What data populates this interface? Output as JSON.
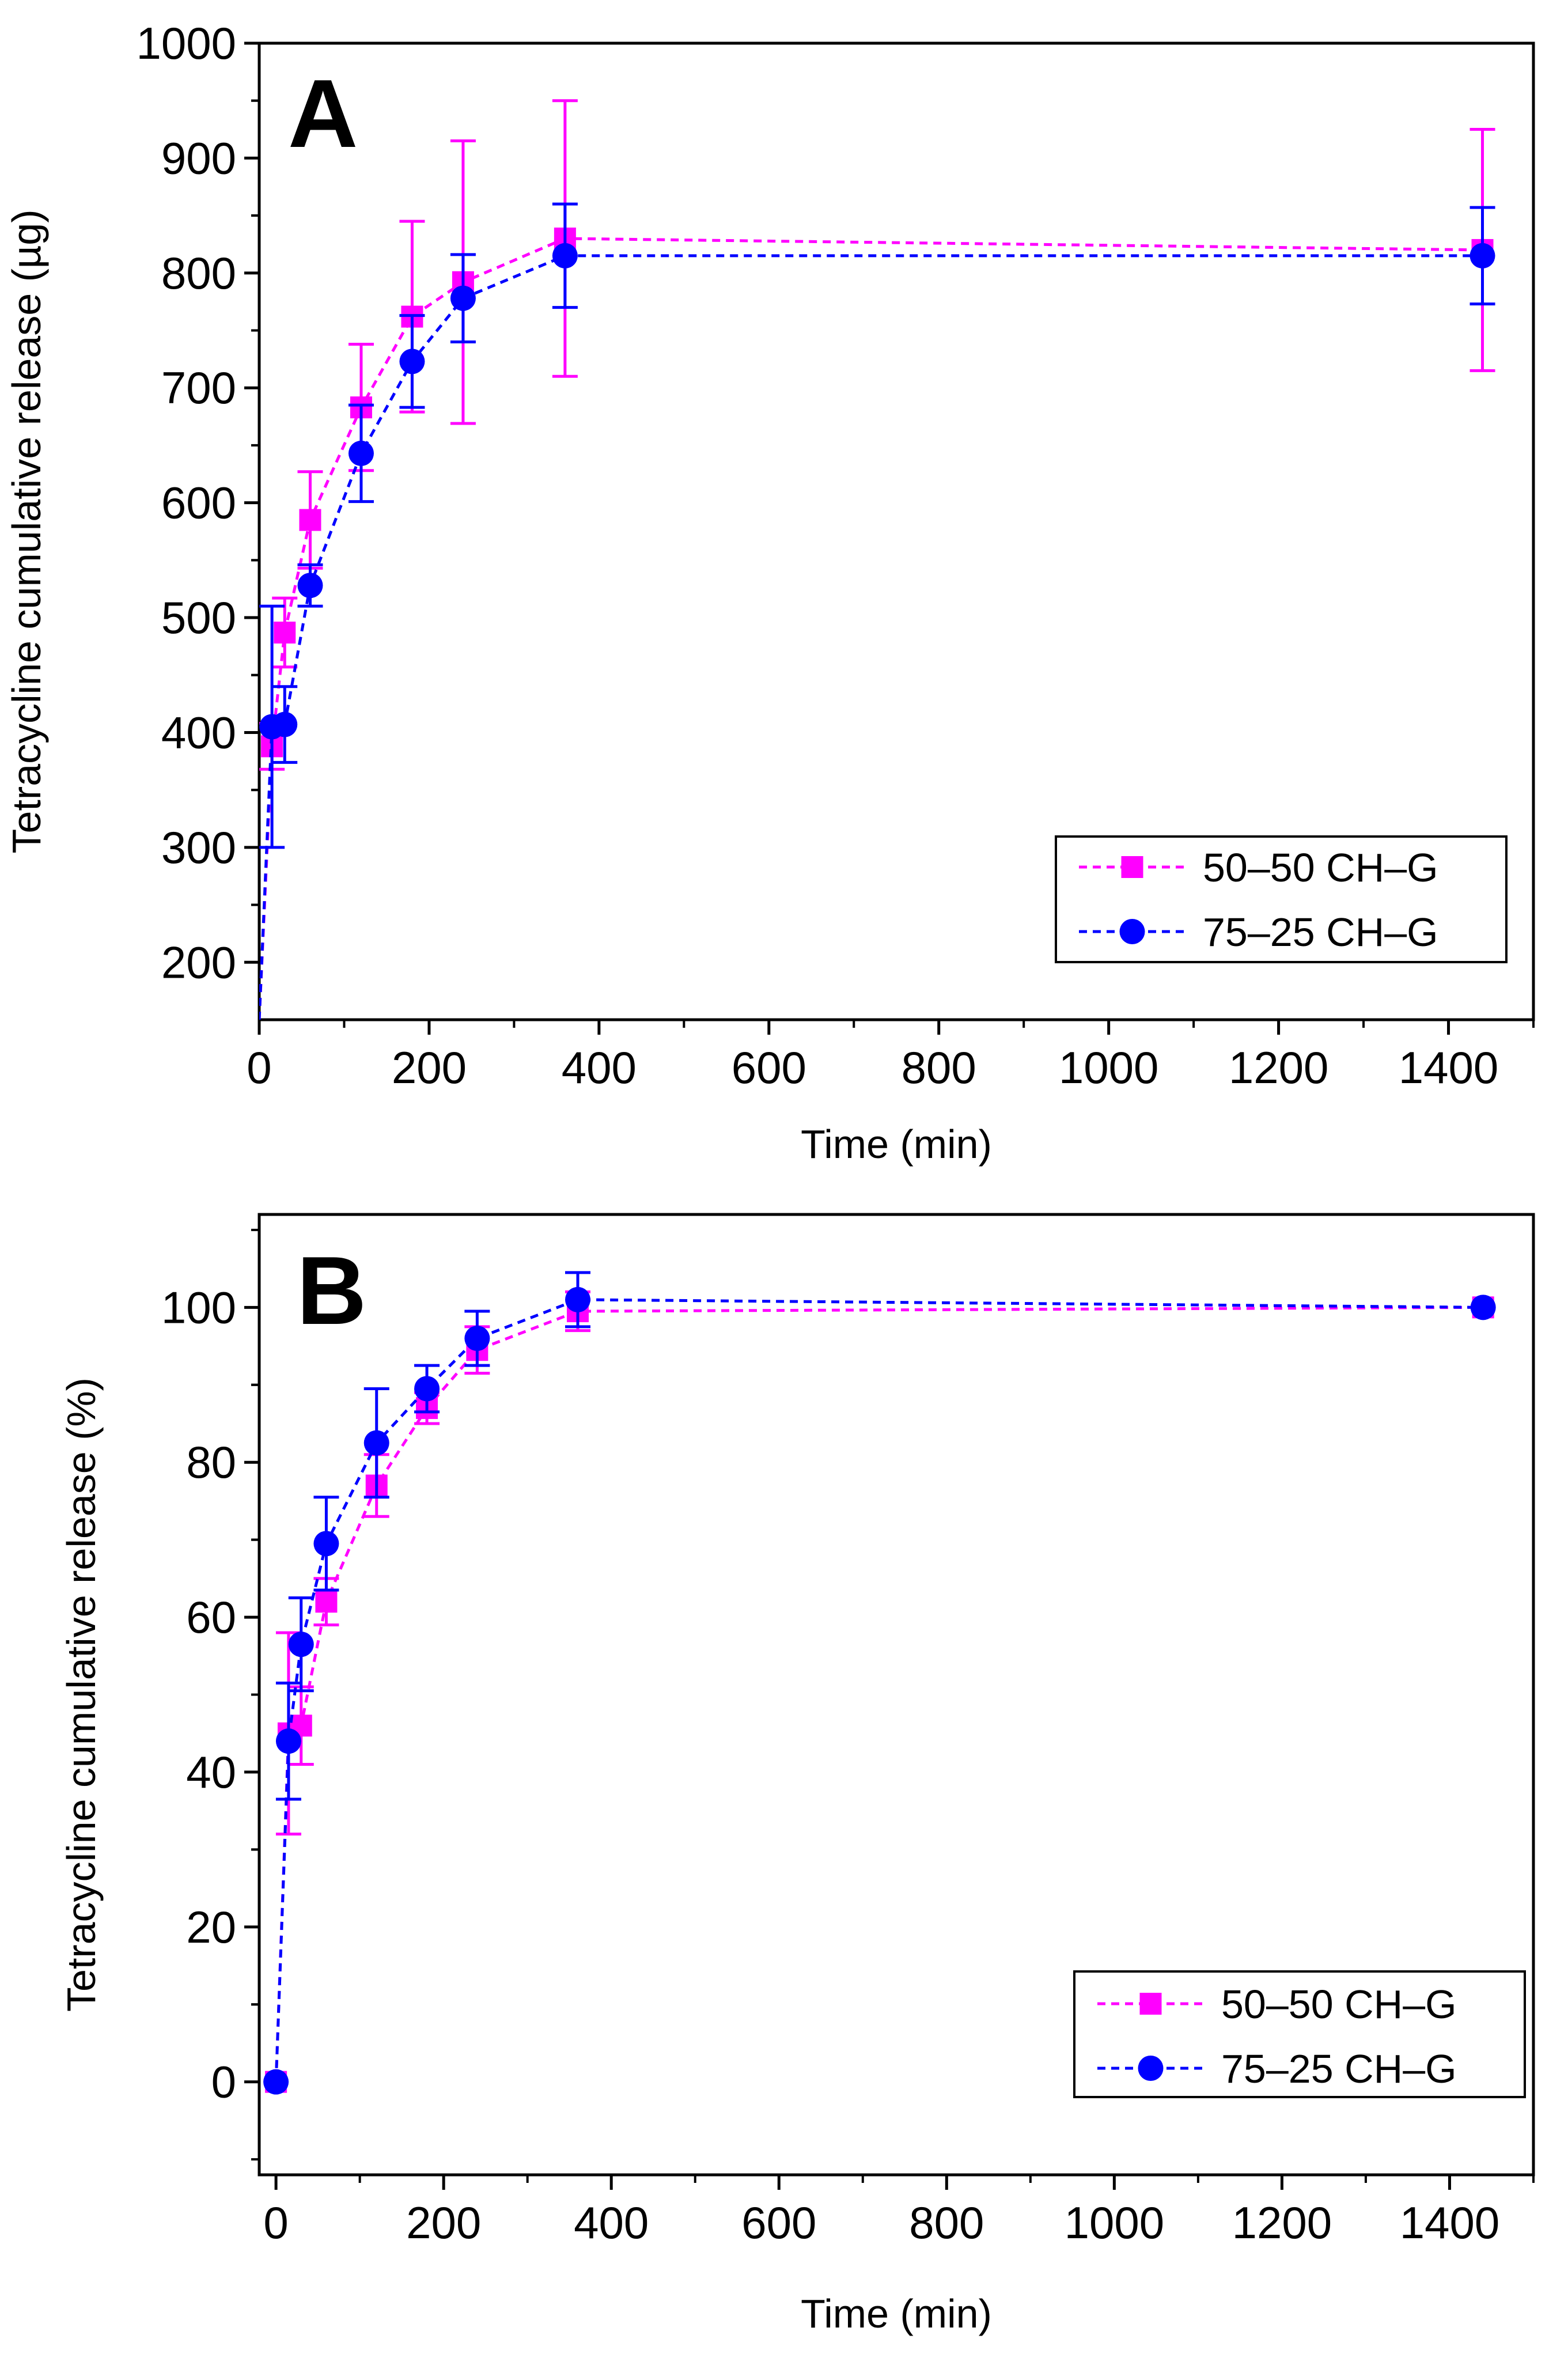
{
  "chart_data": [
    {
      "type": "line",
      "panel_label": "A",
      "xlabel": "Time (min)",
      "ylabel": "Tetracycline cumulative release (µg)",
      "xlim": [
        0,
        1500
      ],
      "ylim": [
        150,
        1000
      ],
      "xticks": [
        "0",
        "200",
        "400",
        "600",
        "800",
        "1000",
        "1200",
        "1400"
      ],
      "yticks": [
        "200",
        "300",
        "400",
        "500",
        "600",
        "700",
        "800",
        "900",
        "1000"
      ],
      "grid": false,
      "legend_position": "bottom-right",
      "series": [
        {
          "name": "50–50 CH–G",
          "color": "#ff00ff",
          "marker": "square",
          "x": [
            0,
            15,
            30,
            60,
            120,
            180,
            240,
            360,
            1440
          ],
          "y": [
            150,
            388,
            487,
            585,
            683,
            762,
            792,
            830,
            820
          ],
          "err": [
            0,
            20,
            30,
            42,
            55,
            83,
            123,
            120,
            105
          ]
        },
        {
          "name": "75–25 CH–G",
          "color": "#0000ff",
          "marker": "circle",
          "x": [
            0,
            15,
            30,
            60,
            120,
            180,
            240,
            360,
            1440
          ],
          "y": [
            150,
            405,
            407,
            528,
            643,
            723,
            778,
            815,
            815
          ],
          "err": [
            0,
            105,
            33,
            18,
            42,
            40,
            38,
            45,
            42
          ]
        }
      ]
    },
    {
      "type": "line",
      "panel_label": "B",
      "xlabel": "Time (min)",
      "ylabel": "Tetracycline cumulative release (%)",
      "xlim": [
        -20,
        1500
      ],
      "ylim": [
        -12,
        112
      ],
      "xticks": [
        "0",
        "200",
        "400",
        "600",
        "800",
        "1000",
        "1200",
        "1400"
      ],
      "yticks": [
        "0",
        "20",
        "40",
        "60",
        "80",
        "100"
      ],
      "grid": false,
      "legend_position": "bottom-right",
      "series": [
        {
          "name": "50–50 CH–G",
          "color": "#ff00ff",
          "marker": "square",
          "x": [
            0,
            15,
            30,
            60,
            120,
            180,
            240,
            360,
            1440
          ],
          "y": [
            0,
            45,
            46,
            62,
            77,
            87,
            94.5,
            99.5,
            100
          ],
          "err": [
            0,
            13,
            5,
            3,
            4,
            2,
            3,
            2.5,
            0
          ]
        },
        {
          "name": "75–25 CH–G",
          "color": "#0000ff",
          "marker": "circle",
          "x": [
            0,
            15,
            30,
            60,
            120,
            180,
            240,
            360,
            1440
          ],
          "y": [
            0,
            44,
            56.5,
            69.5,
            82.5,
            89.5,
            96,
            101,
            100
          ],
          "err": [
            0,
            7.5,
            6,
            6,
            7,
            3,
            3.5,
            3.5,
            0
          ]
        }
      ]
    }
  ]
}
